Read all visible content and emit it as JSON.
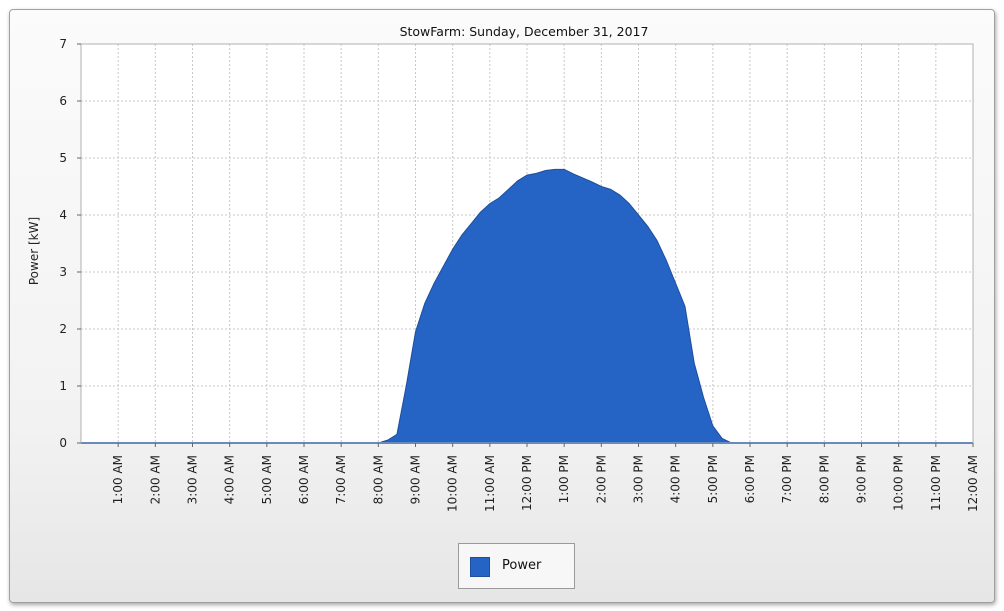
{
  "chart_data": {
    "type": "area",
    "title": "StowFarm: Sunday, December 31, 2017",
    "xlabel": "",
    "ylabel": "Power [kW]",
    "ylim": [
      0,
      7
    ],
    "yticks": [
      "0",
      "1",
      "2",
      "3",
      "4",
      "5",
      "6",
      "7"
    ],
    "xlim_hours": [
      0,
      24
    ],
    "xticks": [
      "1:00 AM",
      "2:00 AM",
      "3:00 AM",
      "4:00 AM",
      "5:00 AM",
      "6:00 AM",
      "7:00 AM",
      "8:00 AM",
      "9:00 AM",
      "10:00 AM",
      "11:00 AM",
      "12:00 PM",
      "1:00 PM",
      "2:00 PM",
      "3:00 PM",
      "4:00 PM",
      "5:00 PM",
      "6:00 PM",
      "7:00 PM",
      "8:00 PM",
      "9:00 PM",
      "10:00 PM",
      "11:00 PM",
      "12:00 AM"
    ],
    "grid": true,
    "legend_position": "bottom",
    "series": [
      {
        "name": "Power",
        "color": "#2563c4",
        "x": [
          0,
          8.0,
          8.25,
          8.5,
          8.75,
          9.0,
          9.25,
          9.5,
          9.75,
          10.0,
          10.25,
          10.5,
          10.75,
          11.0,
          11.25,
          11.5,
          11.75,
          12.0,
          12.25,
          12.5,
          12.75,
          13.0,
          13.25,
          13.5,
          13.75,
          14.0,
          14.25,
          14.5,
          14.75,
          15.0,
          15.25,
          15.5,
          15.75,
          16.0,
          16.25,
          16.5,
          16.75,
          17.0,
          17.25,
          17.5,
          24
        ],
        "y": [
          0,
          0,
          0.05,
          0.15,
          1.0,
          1.95,
          2.45,
          2.8,
          3.1,
          3.4,
          3.65,
          3.85,
          4.05,
          4.2,
          4.3,
          4.45,
          4.6,
          4.7,
          4.73,
          4.78,
          4.8,
          4.8,
          4.72,
          4.65,
          4.58,
          4.5,
          4.45,
          4.35,
          4.2,
          4.0,
          3.8,
          3.55,
          3.2,
          2.8,
          2.4,
          1.4,
          0.8,
          0.3,
          0.08,
          0.0,
          0
        ]
      }
    ]
  }
}
